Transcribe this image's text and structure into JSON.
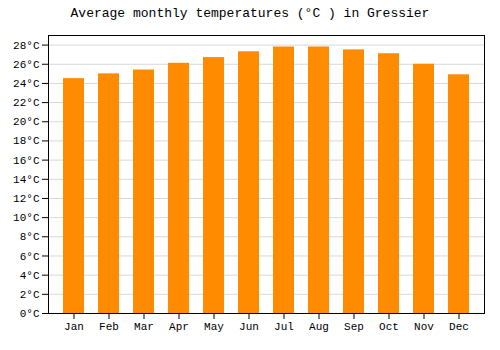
{
  "chart_data": {
    "type": "bar",
    "title": "Average monthly temperatures (°C ) in Gressier",
    "categories": [
      "Jan",
      "Feb",
      "Mar",
      "Apr",
      "May",
      "Jun",
      "Jul",
      "Aug",
      "Sep",
      "Oct",
      "Nov",
      "Dec"
    ],
    "values": [
      24.5,
      25.0,
      25.4,
      26.1,
      26.7,
      27.3,
      27.8,
      27.8,
      27.5,
      27.1,
      26.0,
      24.9
    ],
    "color": "#ff8c00",
    "ylim": [
      0,
      29
    ],
    "yticks": [
      {
        "value": 0,
        "label": "0°C"
      },
      {
        "value": 2,
        "label": "2°C"
      },
      {
        "value": 4,
        "label": "4°C"
      },
      {
        "value": 6,
        "label": "6°C"
      },
      {
        "value": 8,
        "label": "8°C"
      },
      {
        "value": 10,
        "label": "10°C"
      },
      {
        "value": 12,
        "label": "12°C"
      },
      {
        "value": 14,
        "label": "14°C"
      },
      {
        "value": 16,
        "label": "16°C"
      },
      {
        "value": 18,
        "label": "18°C"
      },
      {
        "value": 20,
        "label": "20°C"
      },
      {
        "value": 22,
        "label": "22°C"
      },
      {
        "value": 24,
        "label": "24°C"
      },
      {
        "value": 26,
        "label": "26°C"
      },
      {
        "value": 28,
        "label": "28°C"
      }
    ],
    "grid": true
  }
}
